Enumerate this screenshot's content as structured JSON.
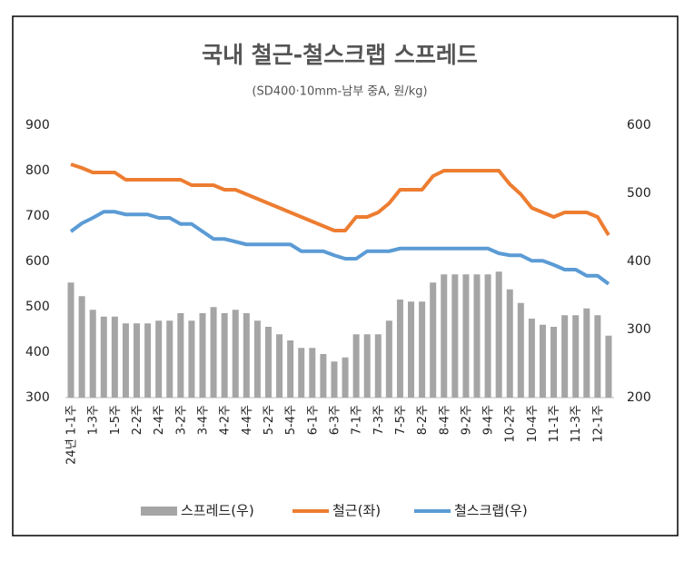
{
  "chart_data": {
    "type": "combo",
    "title": "국내 철근-철스크랩 스프레드",
    "subtitle": "(SD400·10mm-남부 중A,  원/kg)",
    "categories": [
      "24년 1-1주",
      null,
      "1-3주",
      null,
      "1-5주",
      null,
      "2-2주",
      null,
      "2-4주",
      null,
      "3-2주",
      null,
      "3-4주",
      null,
      "4-2주",
      null,
      "4-4주",
      null,
      "5-2주",
      null,
      "5-4주",
      null,
      "6-1주",
      null,
      "6-3주",
      null,
      "7-1주",
      null,
      "7-3주",
      null,
      "7-5주",
      null,
      "8-2주",
      null,
      "8-4주",
      null,
      "9-2주",
      null,
      "9-4주",
      null,
      "10-2주",
      null,
      "10-4주",
      null,
      "11-1주",
      null,
      "11-3주",
      null,
      "12-1주",
      null
    ],
    "series": [
      {
        "name": "스프레드(우)",
        "kind": "bar",
        "axis": "y2",
        "color": "#a5a5a5",
        "values": [
          369,
          349,
          329,
          319,
          319,
          309,
          309,
          309,
          313,
          313,
          324,
          313,
          324,
          333,
          324,
          329,
          324,
          313,
          304,
          293,
          284,
          273,
          273,
          264,
          253,
          259,
          293,
          293,
          293,
          313,
          344,
          341,
          341,
          369,
          381,
          381,
          381,
          381,
          381,
          385,
          359,
          339,
          316,
          307,
          304,
          321,
          321,
          331,
          321,
          291
        ]
      },
      {
        "name": "철근(좌)",
        "kind": "line",
        "color": "#ed7d31",
        "values": [
          814,
          806,
          796,
          796,
          796,
          780,
          780,
          780,
          780,
          780,
          780,
          768,
          768,
          768,
          758,
          758,
          748,
          738,
          728,
          718,
          708,
          698,
          688,
          678,
          668,
          668,
          698,
          698,
          708,
          728,
          758,
          758,
          758,
          788,
          800,
          800,
          800,
          800,
          800,
          800,
          770,
          748,
          718,
          708,
          698,
          708,
          708,
          708,
          698,
          658
        ]
      },
      {
        "name": "철스크랩(우)",
        "kind": "line",
        "axis": "y2",
        "color": "#5b9bd5",
        "values": [
          444,
          456,
          464,
          473,
          473,
          469,
          469,
          469,
          464,
          464,
          455,
          455,
          444,
          433,
          433,
          429,
          425,
          425,
          425,
          425,
          425,
          415,
          415,
          415,
          409,
          404,
          404,
          415,
          415,
          415,
          419,
          419,
          419,
          419,
          419,
          419,
          419,
          419,
          419,
          412,
          409,
          409,
          401,
          401,
          395,
          388,
          388,
          379,
          379,
          367
        ]
      }
    ],
    "ylim": [
      300,
      900
    ],
    "yticks": [
      300,
      400,
      500,
      600,
      700,
      800,
      900
    ],
    "y2lim": [
      200,
      600
    ],
    "y2ticks": [
      200,
      300,
      400,
      500,
      600
    ],
    "legend": "bottom"
  }
}
